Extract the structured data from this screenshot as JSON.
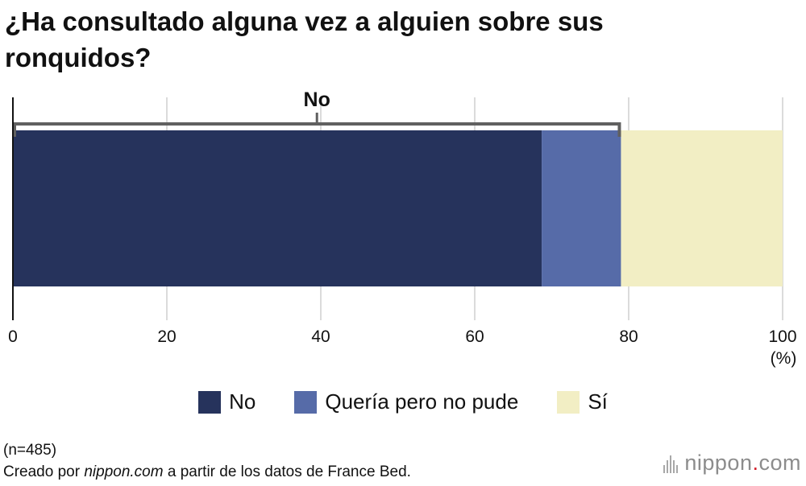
{
  "title": "¿Ha consultado alguna vez a alguien sobre sus ronquidos?",
  "colors": {
    "no": "#26335c",
    "queria": "#566ba8",
    "si": "#f2eec4",
    "grid": "#cfcfcf",
    "axis": "#111111",
    "bracket": "#606060"
  },
  "chart_data": {
    "type": "bar",
    "orientation": "horizontal",
    "stacked": true,
    "categories": [
      ""
    ],
    "series": [
      {
        "name": "No",
        "values": [
          68.7
        ]
      },
      {
        "name": "Quería pero no pude",
        "values": [
          10.3
        ]
      },
      {
        "name": "Sí",
        "values": [
          21.0
        ]
      }
    ],
    "xlim": [
      0,
      100
    ],
    "xticks": [
      "0",
      "20",
      "40",
      "60",
      "80",
      "100"
    ],
    "unit_label": "(%)",
    "grid": true,
    "legend_position": "bottom",
    "annotation": {
      "label": "No",
      "from": 0,
      "to": 79
    }
  },
  "legend": [
    {
      "label": "No",
      "color": "#26335c"
    },
    {
      "label": "Quería pero no pude",
      "color": "#566ba8"
    },
    {
      "label": "Sí",
      "color": "#f2eec4"
    }
  ],
  "footer": {
    "sample": "(n=485)",
    "source_pre": "Creado por ",
    "source_site": "nippon.com",
    "source_post": " a partir de los datos de France Bed."
  },
  "brand": {
    "name": "nippon",
    "dot": ".",
    "tld": "com"
  }
}
